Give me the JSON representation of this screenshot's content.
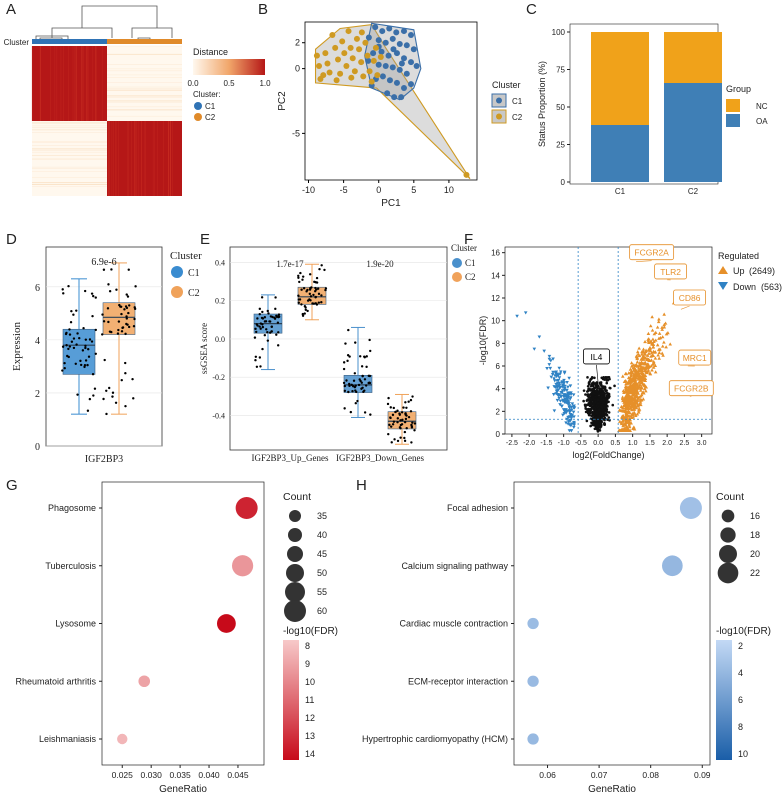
{
  "chart_data": [
    {
      "panel": "A",
      "type": "heatmap",
      "row_label": "Cluster",
      "legend_title": "Distance",
      "legend_ticks": [
        "0.0",
        "0.5",
        "1.0"
      ],
      "cluster_legend_title": "Cluster:",
      "clusters": [
        {
          "name": "C1",
          "color": "#2f73b5",
          "fraction": 0.5
        },
        {
          "name": "C2",
          "color": "#e08a2a",
          "fraction": 0.5
        }
      ],
      "colors": {
        "low": "#fff8ee",
        "high": "#b51717"
      }
    },
    {
      "panel": "B",
      "type": "scatter",
      "xlabel": "PC1",
      "ylabel": "PC2",
      "xlim": [
        -10.5,
        14
      ],
      "ylim": [
        -8.6,
        3.6
      ],
      "xticks": [
        -10,
        -5,
        0,
        5,
        10
      ],
      "yticks": [
        -5,
        0,
        2
      ],
      "legend_title": "Cluster",
      "series": [
        {
          "name": "C1",
          "color": "#3b6fa8",
          "hull": [
            [
              -1,
              3.5
            ],
            [
              5,
              3
            ],
            [
              6,
              0
            ],
            [
              5,
              -1.5
            ],
            [
              3,
              -2.4
            ],
            [
              -1,
              -1.5
            ],
            [
              -2,
              1
            ]
          ],
          "points": [
            [
              -0.5,
              3.2
            ],
            [
              0.5,
              2.9
            ],
            [
              1.5,
              3.1
            ],
            [
              2.5,
              2.8
            ],
            [
              3.6,
              2.9
            ],
            [
              4.6,
              2.6
            ],
            [
              -1.4,
              2.4
            ],
            [
              0,
              2.2
            ],
            [
              1,
              2.0
            ],
            [
              2,
              2.3
            ],
            [
              3,
              1.9
            ],
            [
              4,
              1.8
            ],
            [
              5,
              1.5
            ],
            [
              -0.8,
              1.2
            ],
            [
              0.4,
              1.3
            ],
            [
              1.4,
              1.0
            ],
            [
              2.6,
              1.2
            ],
            [
              3.6,
              0.8
            ],
            [
              4.6,
              0.5
            ],
            [
              5.4,
              0.2
            ],
            [
              0,
              0.3
            ],
            [
              1,
              0.2
            ],
            [
              2,
              0.1
            ],
            [
              3,
              -0.1
            ],
            [
              4,
              -0.4
            ],
            [
              -1.5,
              0.6
            ],
            [
              0.6,
              -0.6
            ],
            [
              1.6,
              -0.9
            ],
            [
              2.6,
              -1.1
            ],
            [
              3.6,
              -1.5
            ],
            [
              4.6,
              -1.2
            ],
            [
              1.2,
              -1.9
            ],
            [
              2.2,
              -2.2
            ],
            [
              3.2,
              -2.2
            ],
            [
              -0.4,
              -0.8
            ],
            [
              -1,
              -1.3
            ],
            [
              0,
              1.7
            ],
            [
              2.1,
              1.5
            ],
            [
              3.3,
              0.4
            ]
          ]
        },
        {
          "name": "C2",
          "color": "#cf9a22",
          "hull": [
            [
              -9,
              1.5
            ],
            [
              -5.5,
              3.1
            ],
            [
              -1,
              3.4
            ],
            [
              1,
              1.6
            ],
            [
              13,
              -8.5
            ],
            [
              -0.3,
              -1.5
            ],
            [
              -9,
              -1.1
            ]
          ],
          "points": [
            [
              -8.8,
              1.0
            ],
            [
              -8.5,
              0.2
            ],
            [
              -8.3,
              -0.8
            ],
            [
              -7.6,
              1.2
            ],
            [
              -7.3,
              0.4
            ],
            [
              -7,
              -0.3
            ],
            [
              -6.6,
              2.6
            ],
            [
              -6.2,
              1.6
            ],
            [
              -5.8,
              0.7
            ],
            [
              -5.5,
              -0.4
            ],
            [
              -5.2,
              2.1
            ],
            [
              -4.9,
              1.2
            ],
            [
              -4.6,
              0.2
            ],
            [
              -4.3,
              2.9
            ],
            [
              -4,
              1.6
            ],
            [
              -3.7,
              0.8
            ],
            [
              -3.4,
              -0.2
            ],
            [
              -3.1,
              2.3
            ],
            [
              -2.8,
              1.5
            ],
            [
              -2.5,
              0.5
            ],
            [
              -2.2,
              -0.6
            ],
            [
              -1.9,
              2.0
            ],
            [
              -1.6,
              1.0
            ],
            [
              -1.3,
              -0.2
            ],
            [
              -1,
              -1.0
            ],
            [
              -0.7,
              0.6
            ],
            [
              -0.4,
              1.6
            ],
            [
              -0.2,
              -0.5
            ],
            [
              0.3,
              0.9
            ],
            [
              -6,
              -0.9
            ],
            [
              -7.9,
              -0.5
            ],
            [
              -3.9,
              -0.7
            ],
            [
              -2.4,
              2.8
            ],
            [
              12.5,
              -8.2
            ]
          ]
        }
      ]
    },
    {
      "panel": "C",
      "type": "bar",
      "ylabel": "Status Proportion (%)",
      "ylim": [
        0,
        100
      ],
      "yticks": [
        0,
        25,
        50,
        75,
        100
      ],
      "categories": [
        "C1",
        "C2"
      ],
      "series": [
        {
          "name": "OA",
          "color": "#3f7fb6",
          "values": [
            38,
            66
          ]
        },
        {
          "name": "NC",
          "color": "#f0a21a",
          "values": [
            62,
            34
          ]
        }
      ],
      "legend_title": "Group",
      "legend_order": [
        "NC",
        "OA"
      ]
    },
    {
      "panel": "D",
      "type": "box",
      "xlabel": "IGF2BP3",
      "ylabel": "Expression",
      "ylim": [
        0,
        7.5
      ],
      "yticks": [
        0,
        2,
        4,
        6
      ],
      "pvalue": "6.9e-6",
      "legend_title": "Cluster",
      "series": [
        {
          "name": "C1",
          "color": "#3a8cd0",
          "min": 1.2,
          "q1": 2.7,
          "median": 3.8,
          "q3": 4.4,
          "max": 6.3
        },
        {
          "name": "C2",
          "color": "#f0a25a",
          "min": 1.2,
          "q1": 4.2,
          "median": 4.85,
          "q3": 5.4,
          "max": 6.9
        }
      ]
    },
    {
      "panel": "E",
      "type": "box",
      "ylabel": "ssGSEA score",
      "ylim": [
        -0.58,
        0.48
      ],
      "yticks": [
        -0.4,
        -0.2,
        0.0,
        0.2,
        0.4
      ],
      "categories": [
        "IGF2BP3_Up_Genes",
        "IGF2BP3_Down_Genes"
      ],
      "pvalues": [
        "1.7e-17",
        "1.9e-20"
      ],
      "legend_title": "Cluster",
      "series": [
        {
          "name": "C1",
          "color": "#4a90cc",
          "boxes": [
            {
              "min": -0.16,
              "q1": 0.03,
              "median": 0.08,
              "q3": 0.13,
              "max": 0.23
            },
            {
              "min": -0.41,
              "q1": -0.28,
              "median": -0.24,
              "q3": -0.19,
              "max": 0.06
            }
          ]
        },
        {
          "name": "C2",
          "color": "#f0a25a",
          "boxes": [
            {
              "min": 0.1,
              "q1": 0.18,
              "median": 0.22,
              "q3": 0.27,
              "max": 0.39
            },
            {
              "min": -0.55,
              "q1": -0.47,
              "median": -0.43,
              "q3": -0.38,
              "max": -0.29
            }
          ]
        }
      ]
    },
    {
      "panel": "F",
      "type": "scatter",
      "xlabel": "log2(FoldChange)",
      "ylabel": "-log10(FDR)",
      "xlim": [
        -2.7,
        3.3
      ],
      "ylim": [
        0,
        16.5
      ],
      "xticks": [
        "-2.5",
        "-2.0",
        "-1.5",
        "-1.0",
        "-0.5",
        "0.0",
        "0.5",
        "1.0",
        "1.5",
        "2.0",
        "2.5",
        "3.0"
      ],
      "yticks": [
        0,
        2,
        4,
        6,
        8,
        10,
        12,
        14,
        16
      ],
      "vlines": [
        -0.58,
        0.58
      ],
      "hline": 1.3,
      "legend_title": "Regulated",
      "series": [
        {
          "name": "Up",
          "count": "(2649)",
          "color": "#e6902a"
        },
        {
          "name": "Down",
          "count": "(563)",
          "color": "#2f82c4"
        }
      ],
      "labels": [
        {
          "text": "FCGR2A",
          "x": 1.1,
          "y": 15.2,
          "color": "#e6902a",
          "lx": 1.55,
          "ly": 16.0
        },
        {
          "text": "TLR2",
          "x": 2.0,
          "y": 13.6,
          "color": "#e6902a",
          "lx": 2.1,
          "ly": 14.3
        },
        {
          "text": "CD86",
          "x": 2.4,
          "y": 11.0,
          "color": "#e6902a",
          "lx": 2.65,
          "ly": 12.0
        },
        {
          "text": "MRC1",
          "x": 2.6,
          "y": 6.0,
          "color": "#e6902a",
          "lx": 2.8,
          "ly": 6.7
        },
        {
          "text": "FCGR2B",
          "x": 2.3,
          "y": 3.9,
          "color": "#e6902a",
          "lx": 2.7,
          "ly": 4.0
        },
        {
          "text": "IL4",
          "x": 0.0,
          "y": 4.5,
          "color": "#000000",
          "lx": -0.05,
          "ly": 6.8
        }
      ]
    },
    {
      "panel": "G",
      "type": "scatter",
      "xlabel": "GeneRatio",
      "xlim": [
        0.0215,
        0.0495
      ],
      "xticks": [
        "0.025",
        "0.030",
        "0.035",
        "0.040",
        "0.045"
      ],
      "categories": [
        "Phagosome",
        "Tuberculosis",
        "Lysosome",
        "Rheumatoid arthritis",
        "Leishmaniasis"
      ],
      "gene_ratio": [
        0.0465,
        0.0458,
        0.043,
        0.0288,
        0.025
      ],
      "count": [
        60,
        58,
        52,
        34,
        31
      ],
      "fdr_log": [
        13.2,
        9.6,
        14.0,
        9.2,
        8.6
      ],
      "count_legend": {
        "title": "Count",
        "values": [
          35,
          40,
          45,
          50,
          55,
          60
        ]
      },
      "color_legend": {
        "title": "-log10(FDR)",
        "ticks": [
          8,
          9,
          10,
          11,
          12,
          13,
          14
        ],
        "low": "#f7c9c9",
        "high": "#c70a1a"
      }
    },
    {
      "panel": "H",
      "type": "scatter",
      "xlabel": "GeneRatio",
      "xlim": [
        0.0535,
        0.0915
      ],
      "xticks": [
        "0.06",
        "0.07",
        "0.08",
        "0.09"
      ],
      "categories": [
        "Focal adhesion",
        "Calcium signaling pathway",
        "Cardiac muscle contraction",
        "ECM-receptor interaction",
        "Hypertrophic cardiomyopathy (HCM)"
      ],
      "gene_ratio": [
        0.0878,
        0.0842,
        0.0572,
        0.0572,
        0.0572
      ],
      "count": [
        23,
        22,
        15,
        15,
        15
      ],
      "fdr_log": [
        3.6,
        4.2,
        3.9,
        4.0,
        4.1
      ],
      "count_legend": {
        "title": "Count",
        "values": [
          16,
          18,
          20,
          22
        ]
      },
      "color_legend": {
        "title": "-log10(FDR)",
        "ticks": [
          2,
          4,
          6,
          8,
          10
        ],
        "low": "#c3d9f5",
        "high": "#1a5ea8"
      }
    }
  ],
  "panel_letters": [
    "A",
    "B",
    "C",
    "D",
    "E",
    "F",
    "G",
    "H"
  ]
}
